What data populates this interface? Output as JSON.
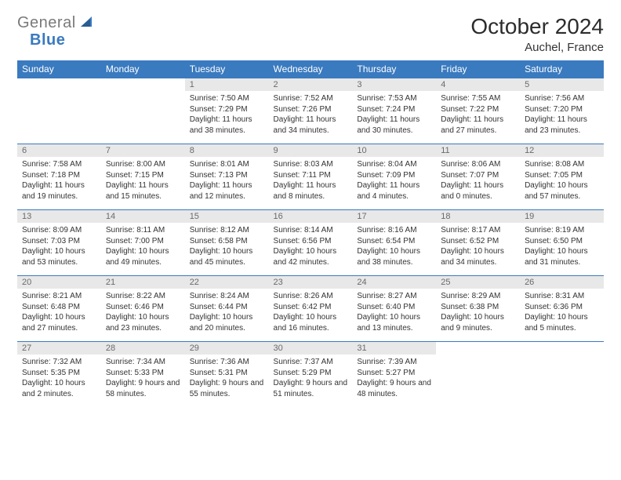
{
  "brand": {
    "part1": "General",
    "part2": "Blue"
  },
  "title": "October 2024",
  "location": "Auchel, France",
  "colors": {
    "header_bg": "#3a7abf",
    "header_text": "#ffffff",
    "border": "#3a7abf",
    "daynum_bg": "#e8e8e8",
    "daynum_text": "#6a6a6a",
    "body_text": "#333333"
  },
  "weekdays": [
    "Sunday",
    "Monday",
    "Tuesday",
    "Wednesday",
    "Thursday",
    "Friday",
    "Saturday"
  ],
  "weeks": [
    [
      null,
      null,
      {
        "n": "1",
        "sr": "7:50 AM",
        "ss": "7:29 PM",
        "dl": "11 hours and 38 minutes."
      },
      {
        "n": "2",
        "sr": "7:52 AM",
        "ss": "7:26 PM",
        "dl": "11 hours and 34 minutes."
      },
      {
        "n": "3",
        "sr": "7:53 AM",
        "ss": "7:24 PM",
        "dl": "11 hours and 30 minutes."
      },
      {
        "n": "4",
        "sr": "7:55 AM",
        "ss": "7:22 PM",
        "dl": "11 hours and 27 minutes."
      },
      {
        "n": "5",
        "sr": "7:56 AM",
        "ss": "7:20 PM",
        "dl": "11 hours and 23 minutes."
      }
    ],
    [
      {
        "n": "6",
        "sr": "7:58 AM",
        "ss": "7:18 PM",
        "dl": "11 hours and 19 minutes."
      },
      {
        "n": "7",
        "sr": "8:00 AM",
        "ss": "7:15 PM",
        "dl": "11 hours and 15 minutes."
      },
      {
        "n": "8",
        "sr": "8:01 AM",
        "ss": "7:13 PM",
        "dl": "11 hours and 12 minutes."
      },
      {
        "n": "9",
        "sr": "8:03 AM",
        "ss": "7:11 PM",
        "dl": "11 hours and 8 minutes."
      },
      {
        "n": "10",
        "sr": "8:04 AM",
        "ss": "7:09 PM",
        "dl": "11 hours and 4 minutes."
      },
      {
        "n": "11",
        "sr": "8:06 AM",
        "ss": "7:07 PM",
        "dl": "11 hours and 0 minutes."
      },
      {
        "n": "12",
        "sr": "8:08 AM",
        "ss": "7:05 PM",
        "dl": "10 hours and 57 minutes."
      }
    ],
    [
      {
        "n": "13",
        "sr": "8:09 AM",
        "ss": "7:03 PM",
        "dl": "10 hours and 53 minutes."
      },
      {
        "n": "14",
        "sr": "8:11 AM",
        "ss": "7:00 PM",
        "dl": "10 hours and 49 minutes."
      },
      {
        "n": "15",
        "sr": "8:12 AM",
        "ss": "6:58 PM",
        "dl": "10 hours and 45 minutes."
      },
      {
        "n": "16",
        "sr": "8:14 AM",
        "ss": "6:56 PM",
        "dl": "10 hours and 42 minutes."
      },
      {
        "n": "17",
        "sr": "8:16 AM",
        "ss": "6:54 PM",
        "dl": "10 hours and 38 minutes."
      },
      {
        "n": "18",
        "sr": "8:17 AM",
        "ss": "6:52 PM",
        "dl": "10 hours and 34 minutes."
      },
      {
        "n": "19",
        "sr": "8:19 AM",
        "ss": "6:50 PM",
        "dl": "10 hours and 31 minutes."
      }
    ],
    [
      {
        "n": "20",
        "sr": "8:21 AM",
        "ss": "6:48 PM",
        "dl": "10 hours and 27 minutes."
      },
      {
        "n": "21",
        "sr": "8:22 AM",
        "ss": "6:46 PM",
        "dl": "10 hours and 23 minutes."
      },
      {
        "n": "22",
        "sr": "8:24 AM",
        "ss": "6:44 PM",
        "dl": "10 hours and 20 minutes."
      },
      {
        "n": "23",
        "sr": "8:26 AM",
        "ss": "6:42 PM",
        "dl": "10 hours and 16 minutes."
      },
      {
        "n": "24",
        "sr": "8:27 AM",
        "ss": "6:40 PM",
        "dl": "10 hours and 13 minutes."
      },
      {
        "n": "25",
        "sr": "8:29 AM",
        "ss": "6:38 PM",
        "dl": "10 hours and 9 minutes."
      },
      {
        "n": "26",
        "sr": "8:31 AM",
        "ss": "6:36 PM",
        "dl": "10 hours and 5 minutes."
      }
    ],
    [
      {
        "n": "27",
        "sr": "7:32 AM",
        "ss": "5:35 PM",
        "dl": "10 hours and 2 minutes."
      },
      {
        "n": "28",
        "sr": "7:34 AM",
        "ss": "5:33 PM",
        "dl": "9 hours and 58 minutes."
      },
      {
        "n": "29",
        "sr": "7:36 AM",
        "ss": "5:31 PM",
        "dl": "9 hours and 55 minutes."
      },
      {
        "n": "30",
        "sr": "7:37 AM",
        "ss": "5:29 PM",
        "dl": "9 hours and 51 minutes."
      },
      {
        "n": "31",
        "sr": "7:39 AM",
        "ss": "5:27 PM",
        "dl": "9 hours and 48 minutes."
      },
      null,
      null
    ]
  ],
  "labels": {
    "sunrise": "Sunrise:",
    "sunset": "Sunset:",
    "daylight": "Daylight:"
  }
}
